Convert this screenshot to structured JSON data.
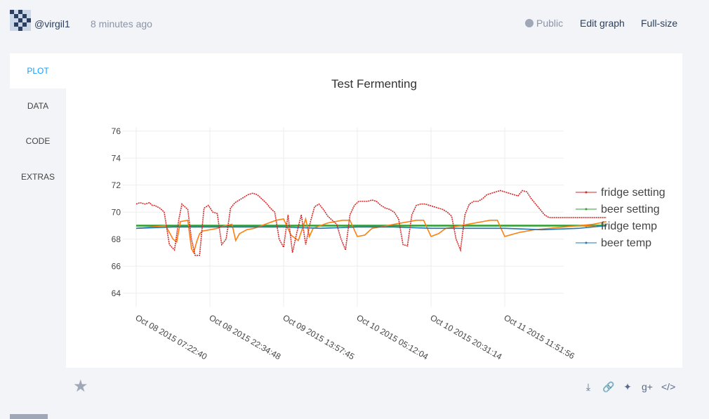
{
  "header": {
    "username": "@virgil1",
    "time": "8 minutes ago",
    "public_label": "Public",
    "edit_label": "Edit graph",
    "fullsize_label": "Full-size"
  },
  "tabs": [
    {
      "label": "PLOT",
      "active": true
    },
    {
      "label": "DATA",
      "active": false
    },
    {
      "label": "CODE",
      "active": false
    },
    {
      "label": "EXTRAS",
      "active": false
    }
  ],
  "footer": {
    "icons": [
      "star-icon",
      "download-icon",
      "link-icon",
      "twitter-icon",
      "google-plus-icon",
      "embed-icon"
    ]
  },
  "chart_data": {
    "type": "line",
    "title": "Test Fermenting",
    "y_ticks": [
      64,
      66,
      68,
      70,
      72,
      74,
      76
    ],
    "x_ticks": [
      "Oct 08 2015 07:22:40",
      "Oct 08 2015 22:34:48",
      "Oct 09 2015 13:57:45",
      "Oct 10 2015 05:12:04",
      "Oct 10 2015 20:31:14",
      "Oct 11 2015 11:51:56"
    ],
    "legend_position": "right",
    "grid": true,
    "series": [
      {
        "name": "fridge setting",
        "color": "#d62728",
        "x": [
          0,
          0.05,
          0.12,
          0.18,
          0.22,
          0.25,
          0.32,
          0.38,
          0.45,
          0.52,
          0.58,
          0.62,
          0.66,
          0.7,
          0.75,
          0.8,
          0.86,
          0.92,
          0.98,
          1.04,
          1.1,
          1.16,
          1.22,
          1.28,
          1.34,
          1.4,
          1.46,
          1.52,
          1.58,
          1.64,
          1.7,
          1.76,
          1.82,
          1.88,
          1.94,
          2.0,
          2.06,
          2.12,
          2.18,
          2.24,
          2.3,
          2.36,
          2.42,
          2.48,
          2.54,
          2.6,
          2.66,
          2.72,
          2.78,
          2.84,
          2.9,
          2.96,
          3.02,
          3.08,
          3.14,
          3.2,
          3.26,
          3.32,
          3.38,
          3.44,
          3.5,
          3.56,
          3.62,
          3.68,
          3.74,
          3.8,
          3.86,
          3.92,
          3.98,
          4.04,
          4.1,
          4.16,
          4.22,
          4.28,
          4.34,
          4.4,
          4.46,
          4.52,
          4.58,
          4.64,
          4.7,
          4.76,
          4.82,
          4.88,
          4.94,
          5.0,
          5.06,
          5.12,
          5.18,
          5.24,
          5.3,
          5.36,
          5.42,
          5.48,
          5.54,
          5.6,
          5.66,
          5.72,
          5.78,
          5.84,
          5.9,
          5.96,
          6.02,
          6.08,
          6.14,
          6.2,
          6.26,
          6.32,
          6.38
        ],
        "values": [
          70.6,
          70.7,
          70.6,
          70.7,
          70.5,
          70.5,
          70.3,
          70.0,
          67.6,
          67.2,
          69.5,
          70.6,
          70.4,
          70.2,
          68.0,
          66.8,
          66.8,
          70.3,
          70.5,
          70.0,
          69.9,
          67.6,
          68.0,
          70.3,
          70.7,
          70.9,
          71.1,
          71.3,
          71.4,
          71.3,
          71.0,
          70.7,
          70.3,
          70.0,
          68.0,
          67.4,
          69.8,
          67.0,
          68.5,
          69.8,
          67.6,
          69.2,
          70.4,
          70.6,
          70.2,
          69.7,
          69.4,
          69.1,
          68.0,
          67.2,
          69.8,
          70.5,
          70.8,
          70.8,
          70.8,
          70.9,
          70.8,
          70.5,
          70.3,
          70.2,
          70.0,
          69.5,
          67.6,
          67.5,
          69.8,
          70.5,
          70.6,
          70.6,
          70.5,
          70.4,
          70.3,
          70.2,
          70.0,
          69.7,
          68.0,
          67.2,
          69.8,
          70.6,
          70.8,
          70.8,
          71.0,
          71.3,
          71.4,
          71.5,
          71.6,
          71.5,
          71.4,
          71.3,
          71.2,
          71.6,
          71.5,
          71.0,
          70.6,
          70.2,
          69.8,
          69.6,
          69.6,
          69.6,
          69.6,
          69.6,
          69.6,
          69.6,
          69.6,
          69.6,
          69.6,
          69.6,
          69.6,
          69.6,
          69.6
        ]
      },
      {
        "name": "beer setting",
        "color": "#2ca02c",
        "x": [
          0,
          6.38
        ],
        "values": [
          69.0,
          69.0
        ]
      },
      {
        "name": "fridge temp",
        "color": "#ff7f0e",
        "x": [
          0,
          0.2,
          0.4,
          0.5,
          0.55,
          0.6,
          0.7,
          0.75,
          0.78,
          0.82,
          0.86,
          0.9,
          1.0,
          1.1,
          1.2,
          1.3,
          1.35,
          1.4,
          1.5,
          1.6,
          1.7,
          1.8,
          1.9,
          2.0,
          2.1,
          2.2,
          2.3,
          2.35,
          2.4,
          2.5,
          2.6,
          2.7,
          2.8,
          2.9,
          3.0,
          3.1,
          3.2,
          3.3,
          3.4,
          3.5,
          3.6,
          3.7,
          3.8,
          3.9,
          4.0,
          4.1,
          4.2,
          4.3,
          4.4,
          4.5,
          4.6,
          4.7,
          4.8,
          4.9,
          5.0,
          5.2,
          5.4,
          5.6,
          5.8,
          6.0,
          6.2,
          6.38
        ],
        "values": [
          68.8,
          68.9,
          69.0,
          68.0,
          67.8,
          69.3,
          69.4,
          67.3,
          67.0,
          67.8,
          68.4,
          68.6,
          68.7,
          68.8,
          69.0,
          69.1,
          67.9,
          68.4,
          68.7,
          68.8,
          69.0,
          69.2,
          69.4,
          69.5,
          68.3,
          67.9,
          69.5,
          68.2,
          68.8,
          69.0,
          69.2,
          69.3,
          69.4,
          69.4,
          68.2,
          68.3,
          68.8,
          68.9,
          69.0,
          69.1,
          69.2,
          69.3,
          69.4,
          69.4,
          68.2,
          68.4,
          68.8,
          68.9,
          69.0,
          69.1,
          69.2,
          69.3,
          69.4,
          69.4,
          68.2,
          68.5,
          68.7,
          68.8,
          68.9,
          69.0,
          69.1,
          69.3
        ]
      },
      {
        "name": "beer temp",
        "color": "#1f77b4",
        "x": [
          0,
          0.5,
          1.0,
          1.5,
          2.0,
          2.5,
          3.0,
          3.5,
          4.0,
          4.5,
          5.0,
          5.5,
          6.0,
          6.38
        ],
        "values": [
          68.8,
          68.9,
          68.9,
          68.9,
          68.9,
          68.8,
          68.9,
          68.9,
          68.8,
          68.8,
          68.8,
          68.7,
          68.8,
          69.0
        ]
      }
    ]
  }
}
